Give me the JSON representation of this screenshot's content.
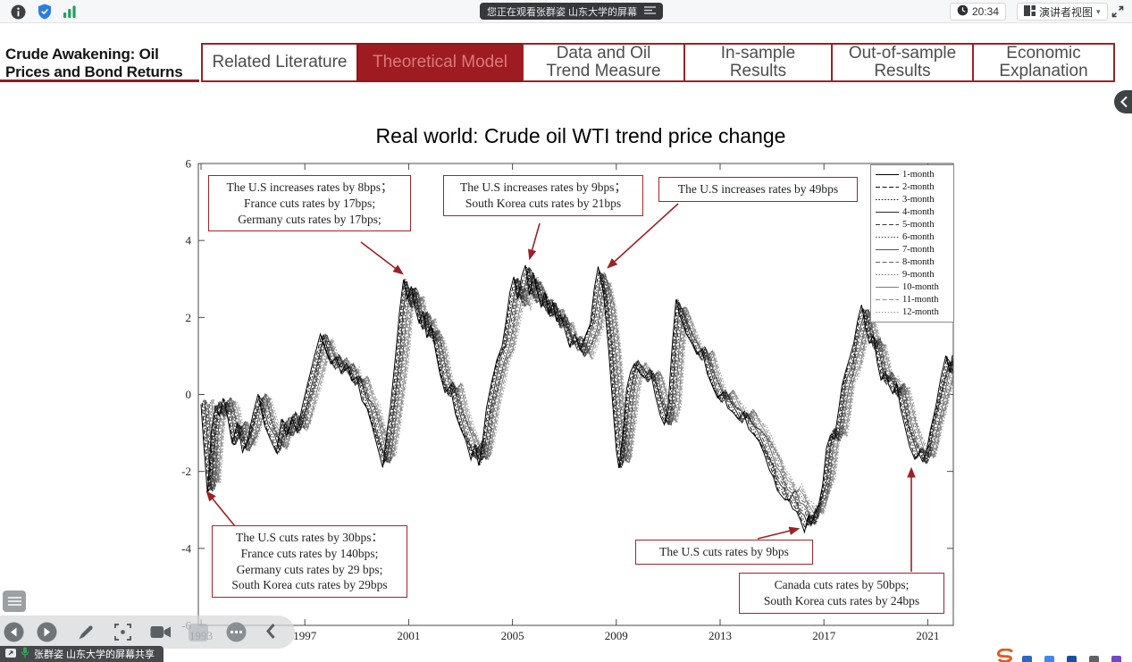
{
  "top_bar": {
    "watching_banner": "您正在观看张群姿 山东大学的屏幕",
    "time": "20:34",
    "view_mode_label": "演讲者视图"
  },
  "slide": {
    "deck_title_lines": [
      "Crude Awakening: Oil",
      "Prices and  Bond Returns"
    ],
    "tabs": [
      {
        "id": "related-literature",
        "lines": [
          "Related Literature"
        ],
        "active": false
      },
      {
        "id": "theoretical-model",
        "lines": [
          "Theoretical Model"
        ],
        "active": true
      },
      {
        "id": "data-oil-trend",
        "lines": [
          "Data and Oil",
          "Trend Measure"
        ],
        "active": false
      },
      {
        "id": "in-sample",
        "lines": [
          "In-sample",
          "Results"
        ],
        "active": false
      },
      {
        "id": "out-of-sample",
        "lines": [
          "Out-of-sample",
          "Results"
        ],
        "active": false
      },
      {
        "id": "economic-explanation",
        "lines": [
          "Economic",
          "Explanation"
        ],
        "active": false
      }
    ]
  },
  "share_bar": {
    "label": "张群姿 山东大学的屏幕共享"
  },
  "colors": {
    "accent_red": "#9b2226",
    "active_tab_bg": "#9e1b21",
    "active_tab_text": "#d77c79",
    "arrow_red": "#9b2226"
  },
  "chart_data": {
    "type": "line",
    "title": "Real world: Crude oil WTI trend price change",
    "xlabel": "",
    "ylabel": "",
    "xlim": [
      1993,
      2022
    ],
    "ylim": [
      -6,
      6
    ],
    "x_ticks": [
      1993,
      1997,
      2001,
      2005,
      2009,
      2013,
      2017,
      2021
    ],
    "y_ticks": [
      6,
      4,
      2,
      0,
      -2,
      -4,
      -6
    ],
    "grid": false,
    "legend_position": "top-right",
    "series_names": [
      "1-month",
      "2-month",
      "3-month",
      "4-month",
      "5-month",
      "6-month",
      "7-month",
      "8-month",
      "9-month",
      "10-month",
      "11-month",
      "12-month"
    ],
    "series_note": "12 horizon series closely track the base path, longer horizons drawn lighter with increasing lag and slight attenuation",
    "base_points": [
      [
        1993.0,
        -0.2
      ],
      [
        1993.1,
        -1.2
      ],
      [
        1993.25,
        -2.6
      ],
      [
        1993.4,
        -1.0
      ],
      [
        1993.55,
        -0.25
      ],
      [
        1993.7,
        -0.55
      ],
      [
        1993.85,
        -0.15
      ],
      [
        1994.0,
        -0.45
      ],
      [
        1994.2,
        -1.3
      ],
      [
        1994.4,
        -0.8
      ],
      [
        1994.6,
        -1.5
      ],
      [
        1994.8,
        -1.1
      ],
      [
        1995.0,
        -0.5
      ],
      [
        1995.2,
        -0.05
      ],
      [
        1995.45,
        -0.8
      ],
      [
        1995.7,
        -1.15
      ],
      [
        1995.9,
        -1.5
      ],
      [
        1996.1,
        -0.7
      ],
      [
        1996.3,
        -1.1
      ],
      [
        1996.5,
        -0.55
      ],
      [
        1996.7,
        -0.95
      ],
      [
        1996.9,
        -0.35
      ],
      [
        1997.1,
        0.2
      ],
      [
        1997.35,
        0.9
      ],
      [
        1997.6,
        1.6
      ],
      [
        1997.8,
        1.1
      ],
      [
        1998.0,
        0.75
      ],
      [
        1998.2,
        1.0
      ],
      [
        1998.4,
        0.6
      ],
      [
        1998.6,
        0.8
      ],
      [
        1998.8,
        0.3
      ],
      [
        1999.0,
        0.45
      ],
      [
        1999.2,
        -0.1
      ],
      [
        1999.4,
        -0.35
      ],
      [
        1999.6,
        -0.9
      ],
      [
        1999.8,
        -1.4
      ],
      [
        2000.0,
        -1.85
      ],
      [
        2000.15,
        -1.1
      ],
      [
        2000.3,
        -0.3
      ],
      [
        2000.5,
        1.0
      ],
      [
        2000.65,
        2.2
      ],
      [
        2000.8,
        3.0
      ],
      [
        2000.95,
        2.4
      ],
      [
        2001.1,
        2.85
      ],
      [
        2001.25,
        2.25
      ],
      [
        2001.4,
        1.8
      ],
      [
        2001.55,
        2.2
      ],
      [
        2001.7,
        1.5
      ],
      [
        2001.85,
        1.75
      ],
      [
        2002.0,
        1.3
      ],
      [
        2002.2,
        0.5
      ],
      [
        2002.4,
        0.0
      ],
      [
        2002.6,
        0.25
      ],
      [
        2002.8,
        -0.45
      ],
      [
        2003.0,
        -0.9
      ],
      [
        2003.2,
        -1.25
      ],
      [
        2003.4,
        -1.7
      ],
      [
        2003.55,
        -1.35
      ],
      [
        2003.7,
        -1.8
      ],
      [
        2003.85,
        -1.2
      ],
      [
        2004.0,
        -0.4
      ],
      [
        2004.2,
        0.3
      ],
      [
        2004.4,
        0.95
      ],
      [
        2004.6,
        1.3
      ],
      [
        2004.75,
        1.9
      ],
      [
        2004.9,
        2.6
      ],
      [
        2005.05,
        3.1
      ],
      [
        2005.2,
        2.5
      ],
      [
        2005.35,
        3.0
      ],
      [
        2005.5,
        3.4
      ],
      [
        2005.65,
        2.6
      ],
      [
        2005.8,
        3.1
      ],
      [
        2005.95,
        2.7
      ],
      [
        2006.1,
        2.3
      ],
      [
        2006.25,
        2.6
      ],
      [
        2006.4,
        2.1
      ],
      [
        2006.55,
        2.4
      ],
      [
        2006.7,
        1.85
      ],
      [
        2006.85,
        2.1
      ],
      [
        2007.0,
        1.75
      ],
      [
        2007.2,
        1.3
      ],
      [
        2007.4,
        1.55
      ],
      [
        2007.6,
        1.1
      ],
      [
        2007.8,
        1.5
      ],
      [
        2008.0,
        1.9
      ],
      [
        2008.15,
        2.7
      ],
      [
        2008.3,
        3.3
      ],
      [
        2008.5,
        2.6
      ],
      [
        2008.7,
        1.2
      ],
      [
        2008.85,
        -0.2
      ],
      [
        2009.0,
        -1.4
      ],
      [
        2009.1,
        -1.9
      ],
      [
        2009.25,
        -1.0
      ],
      [
        2009.4,
        0.1
      ],
      [
        2009.55,
        0.6
      ],
      [
        2009.7,
        0.85
      ],
      [
        2009.9,
        0.6
      ],
      [
        2010.1,
        0.4
      ],
      [
        2010.3,
        0.6
      ],
      [
        2010.5,
        0.0
      ],
      [
        2010.7,
        -0.5
      ],
      [
        2010.85,
        -0.8
      ],
      [
        2011.0,
        -0.3
      ],
      [
        2011.15,
        1.3
      ],
      [
        2011.3,
        2.45
      ],
      [
        2011.5,
        2.0
      ],
      [
        2011.7,
        1.6
      ],
      [
        2011.9,
        1.3
      ],
      [
        2012.1,
        1.0
      ],
      [
        2012.3,
        1.2
      ],
      [
        2012.5,
        0.6
      ],
      [
        2012.7,
        0.2
      ],
      [
        2012.9,
        -0.15
      ],
      [
        2013.1,
        0.05
      ],
      [
        2013.3,
        -0.3
      ],
      [
        2013.5,
        -0.45
      ],
      [
        2013.7,
        -0.7
      ],
      [
        2013.9,
        -0.5
      ],
      [
        2014.1,
        -0.85
      ],
      [
        2014.3,
        -1.0
      ],
      [
        2014.5,
        -1.25
      ],
      [
        2014.7,
        -1.6
      ],
      [
        2014.9,
        -1.95
      ],
      [
        2015.05,
        -2.2
      ],
      [
        2015.2,
        -2.45
      ],
      [
        2015.35,
        -2.6
      ],
      [
        2015.5,
        -2.8
      ],
      [
        2015.65,
        -2.7
      ],
      [
        2015.8,
        -2.95
      ],
      [
        2015.95,
        -3.1
      ],
      [
        2016.1,
        -3.25
      ],
      [
        2016.25,
        -3.55
      ],
      [
        2016.4,
        -3.2
      ],
      [
        2016.5,
        -3.45
      ],
      [
        2016.65,
        -3.1
      ],
      [
        2016.8,
        -2.8
      ],
      [
        2016.95,
        -2.4
      ],
      [
        2017.1,
        -1.4
      ],
      [
        2017.25,
        -1.0
      ],
      [
        2017.4,
        -1.2
      ],
      [
        2017.55,
        -0.5
      ],
      [
        2017.7,
        0.3
      ],
      [
        2017.85,
        0.6
      ],
      [
        2018.0,
        0.95
      ],
      [
        2018.15,
        1.4
      ],
      [
        2018.3,
        1.9
      ],
      [
        2018.45,
        2.3
      ],
      [
        2018.6,
        1.8
      ],
      [
        2018.75,
        1.3
      ],
      [
        2018.9,
        1.5
      ],
      [
        2019.05,
        0.9
      ],
      [
        2019.2,
        0.35
      ],
      [
        2019.35,
        0.55
      ],
      [
        2019.5,
        0.3
      ],
      [
        2019.65,
        0.0
      ],
      [
        2019.8,
        0.25
      ],
      [
        2019.95,
        -0.3
      ],
      [
        2020.1,
        -0.8
      ],
      [
        2020.3,
        -1.3
      ],
      [
        2020.5,
        -1.65
      ],
      [
        2020.65,
        -1.5
      ],
      [
        2020.8,
        -1.8
      ],
      [
        2020.95,
        -1.45
      ],
      [
        2021.1,
        -0.9
      ],
      [
        2021.3,
        -0.3
      ],
      [
        2021.5,
        0.4
      ],
      [
        2021.7,
        0.95
      ],
      [
        2021.85,
        0.6
      ],
      [
        2021.95,
        1.0
      ]
    ],
    "annotations": [
      {
        "lines": [
          "The U.S increases rates by 8bps；",
          "France cuts rates by 17bps;",
          "Germany cuts rates by 17bps;"
        ]
      },
      {
        "lines": [
          "The U.S increases rates by 9bps；",
          "South Korea cuts rates by 21bps"
        ]
      },
      {
        "lines": [
          "The U.S increases rates by 49bps"
        ]
      },
      {
        "lines": [
          "The U.S cuts rates by 30bps：",
          "France cuts rates by 140bps;",
          "Germany cuts rates by 29 bps;",
          "South Korea cuts rates by 29bps"
        ]
      },
      {
        "lines": [
          "The U.S cuts rates by 9bps"
        ]
      },
      {
        "lines": [
          "Canada cuts rates by 50bps;",
          "South Korea cuts rates by 24bps"
        ]
      }
    ]
  }
}
